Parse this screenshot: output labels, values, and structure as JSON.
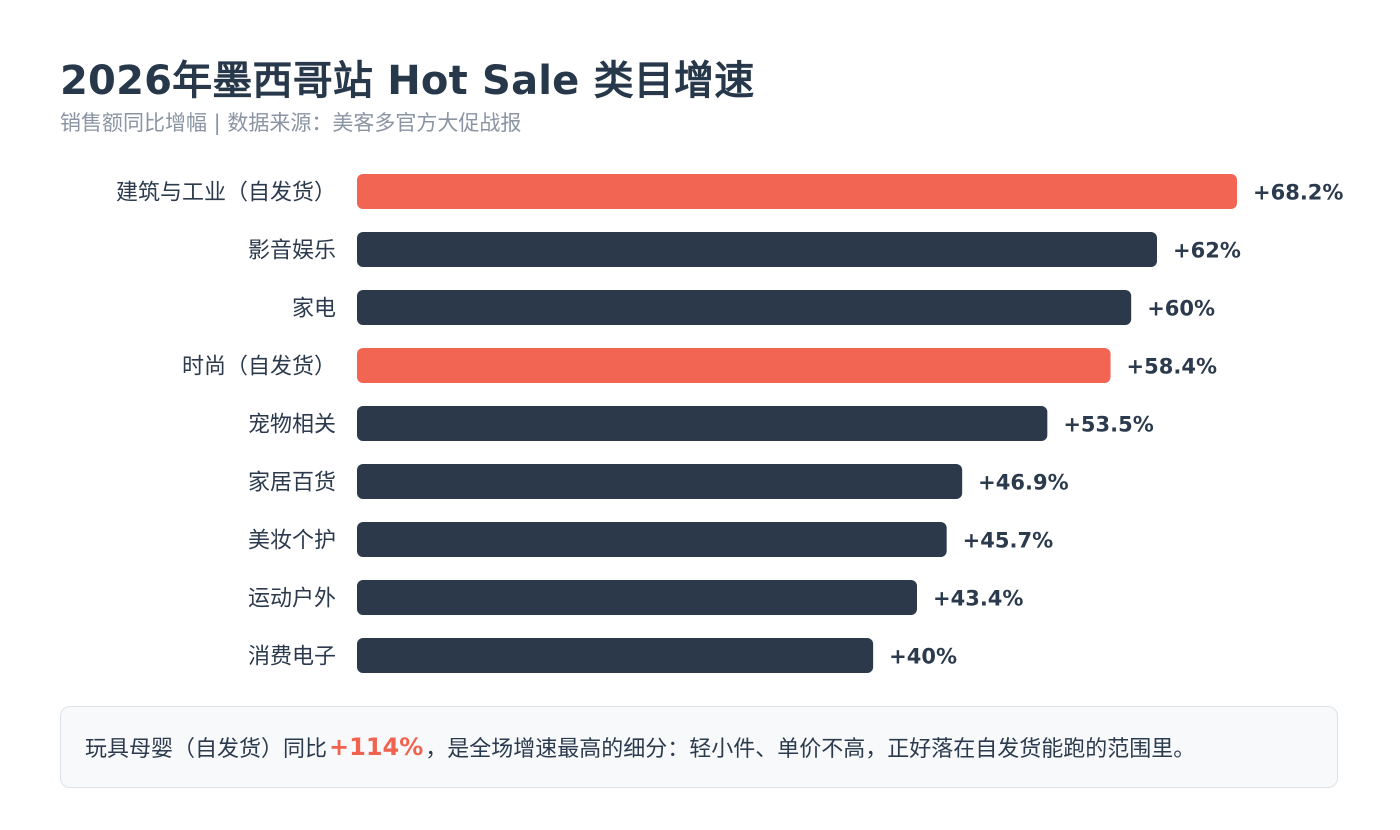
{
  "header": {
    "title": "2026年墨西哥站 Hot Sale 类目增速",
    "subtitle": "销售额同比增幅 | 数据来源：美客多官方大促战报"
  },
  "colors": {
    "highlight": "#f26552",
    "normal": "#2b394b",
    "text": "#2b3a4d",
    "muted": "#8a94a3"
  },
  "chart_data": {
    "type": "bar",
    "orientation": "horizontal",
    "categories": [
      "建筑与工业（自发货）",
      "影音娱乐",
      "家电",
      "时尚（自发货）",
      "宠物相关",
      "家居百货",
      "美妆个护",
      "运动户外",
      "消费电子"
    ],
    "values": [
      68.2,
      62,
      60,
      58.4,
      53.5,
      46.9,
      45.7,
      43.4,
      40
    ],
    "value_labels": [
      "+68.2%",
      "+62%",
      "+60%",
      "+58.4%",
      "+53.5%",
      "+46.9%",
      "+45.7%",
      "+43.4%",
      "+40%"
    ],
    "highlighted": [
      true,
      false,
      false,
      true,
      false,
      false,
      false,
      false,
      false
    ],
    "xlim": [
      0,
      68.2
    ],
    "grid": false,
    "legend": "none"
  },
  "note": {
    "prefix": "玩具母婴（自发货）同比",
    "highlight": "+114%",
    "suffix": "，是全场增速最高的细分：轻小件、单价不高，正好落在自发货能跑的范围里。"
  }
}
